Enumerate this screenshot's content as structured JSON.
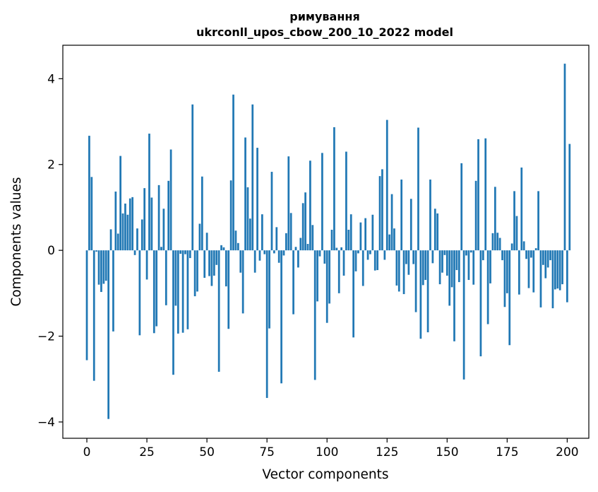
{
  "chart_data": {
    "type": "bar",
    "title_line1": "римування",
    "title_line2": "ukrconll_upos_cbow_200_10_2022 model",
    "xlabel": "Vector components",
    "ylabel": "Components values",
    "xlim": [
      -10,
      209
    ],
    "ylim": [
      -4.38,
      4.78
    ],
    "xticks": [
      0,
      25,
      50,
      75,
      100,
      125,
      150,
      175,
      200
    ],
    "xtick_labels": [
      "0",
      "25",
      "50",
      "75",
      "100",
      "125",
      "150",
      "175",
      "200"
    ],
    "yticks": [
      -4,
      -2,
      0,
      2,
      4
    ],
    "ytick_labels": [
      "−4",
      "−2",
      "0",
      "2",
      "4"
    ],
    "grid": false,
    "bar_color": "#1f77b4",
    "values": [
      -2.56,
      2.67,
      1.71,
      -3.04,
      -0.03,
      -0.8,
      -0.97,
      -0.78,
      -0.71,
      -3.93,
      0.49,
      -1.89,
      1.37,
      0.39,
      2.2,
      0.86,
      1.09,
      0.83,
      1.21,
      1.24,
      -0.11,
      0.51,
      -1.98,
      0.72,
      1.45,
      -0.68,
      2.72,
      1.23,
      -1.93,
      -1.77,
      1.52,
      0.08,
      0.97,
      -1.28,
      1.62,
      2.35,
      -2.9,
      -1.29,
      -1.94,
      -0.08,
      -1.92,
      -0.09,
      -1.84,
      -0.18,
      3.4,
      -1.07,
      -0.96,
      0.62,
      1.72,
      -0.64,
      0.41,
      -0.6,
      -0.83,
      -0.59,
      -0.34,
      -2.83,
      0.12,
      0.07,
      -0.84,
      -1.83,
      1.63,
      3.63,
      0.46,
      0.17,
      -0.52,
      -1.47,
      2.63,
      1.47,
      0.74,
      3.4,
      -0.52,
      2.39,
      -0.24,
      0.84,
      -0.09,
      -3.44,
      -1.82,
      1.83,
      -0.07,
      0.54,
      -0.29,
      -3.1,
      -0.12,
      0.4,
      2.19,
      0.87,
      -1.49,
      0.08,
      -0.4,
      0.29,
      1.1,
      1.35,
      0.15,
      2.09,
      0.59,
      -3.02,
      -1.19,
      -0.14,
      2.27,
      -0.31,
      -1.69,
      -1.24,
      0.48,
      2.87,
      0.06,
      -1.0,
      0.07,
      -0.59,
      2.3,
      0.48,
      0.84,
      -2.03,
      -0.49,
      -0.07,
      0.65,
      -0.83,
      0.75,
      -0.22,
      -0.09,
      0.83,
      -0.47,
      -0.46,
      1.73,
      1.89,
      -0.22,
      3.04,
      0.37,
      1.31,
      0.51,
      -0.82,
      -0.96,
      1.65,
      -1.02,
      -0.32,
      -0.57,
      1.2,
      -0.32,
      -1.44,
      2.86,
      -2.06,
      -0.81,
      -0.69,
      -1.91,
      1.65,
      -0.3,
      0.97,
      0.86,
      -0.79,
      -0.52,
      -0.11,
      -0.59,
      -1.29,
      -0.86,
      -2.12,
      -0.46,
      -0.74,
      2.03,
      -3.01,
      -0.12,
      -0.69,
      -0.05,
      -0.8,
      1.62,
      2.59,
      -2.47,
      -0.23,
      2.61,
      -1.72,
      -0.77,
      0.4,
      1.48,
      0.41,
      0.29,
      -0.23,
      -1.32,
      -1.0,
      -2.21,
      0.16,
      1.38,
      0.8,
      -1.03,
      1.93,
      0.21,
      -0.2,
      -0.88,
      -0.17,
      -0.98,
      0.05,
      1.38,
      -1.33,
      -0.34,
      -0.65,
      -0.4,
      -0.23,
      -1.35,
      -0.91,
      -0.89,
      -0.93,
      -0.79,
      4.35,
      -1.21,
      2.48
    ]
  }
}
